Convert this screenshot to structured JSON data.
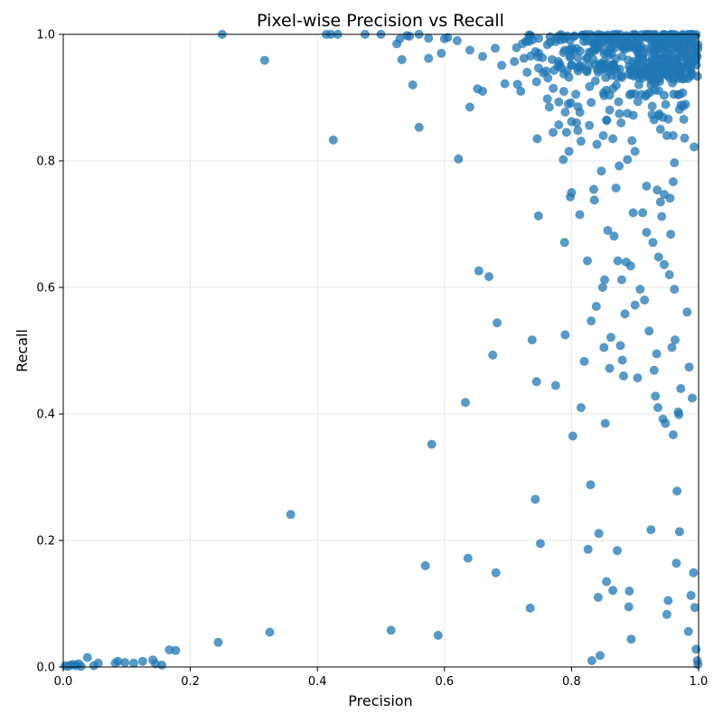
{
  "chart_data": {
    "type": "scatter",
    "title": "Pixel-wise Precision vs Recall",
    "xlabel": "Precision",
    "ylabel": "Recall",
    "xlim": [
      0,
      1
    ],
    "ylim": [
      0,
      1
    ],
    "xticks": [
      "0.0",
      "0.2",
      "0.4",
      "0.6",
      "0.8",
      "1.0"
    ],
    "yticks": [
      "0.0",
      "0.2",
      "0.4",
      "0.6",
      "0.8",
      "1.0"
    ],
    "grid": true,
    "marker_color": "#1f77b4",
    "marker_alpha": 0.75,
    "series": [
      {
        "points": [
          [
            0.003,
            0.002
          ],
          [
            0.008,
            0.001
          ],
          [
            0.012,
            0.003
          ],
          [
            0.016,
            0.004
          ],
          [
            0.02,
            0.002
          ],
          [
            0.024,
            0.005
          ],
          [
            0.028,
            0.001
          ],
          [
            0.038,
            0.015
          ],
          [
            0.048,
            0.002
          ],
          [
            0.055,
            0.006
          ],
          [
            0.082,
            0.006
          ],
          [
            0.086,
            0.009
          ],
          [
            0.097,
            0.007
          ],
          [
            0.111,
            0.006
          ],
          [
            0.125,
            0.009
          ],
          [
            0.141,
            0.011
          ],
          [
            0.145,
            0.005
          ],
          [
            0.155,
            0.003
          ],
          [
            0.167,
            0.027
          ],
          [
            0.177,
            0.026
          ],
          [
            0.244,
            0.039
          ],
          [
            0.25,
            1.0
          ],
          [
            0.325,
            0.055
          ],
          [
            0.317,
            0.959
          ],
          [
            0.358,
            0.241
          ],
          [
            0.414,
            1.0
          ],
          [
            0.421,
            1.0
          ],
          [
            0.425,
            0.833
          ],
          [
            0.432,
            1.0
          ],
          [
            0.475,
            1.0
          ],
          [
            0.5,
            1.0
          ],
          [
            0.516,
            0.058
          ],
          [
            0.525,
            0.985
          ],
          [
            0.533,
            0.96
          ],
          [
            0.541,
            0.998
          ],
          [
            0.55,
            0.92
          ],
          [
            0.56,
            0.853
          ],
          [
            0.57,
            0.16
          ],
          [
            0.575,
            0.962
          ],
          [
            0.58,
            0.352
          ],
          [
            0.59,
            0.05
          ],
          [
            0.595,
            0.97
          ],
          [
            0.605,
            0.995
          ],
          [
            0.622,
            0.803
          ],
          [
            0.633,
            0.418
          ],
          [
            0.637,
            0.172
          ],
          [
            0.64,
            0.885
          ],
          [
            0.652,
            0.914
          ],
          [
            0.654,
            0.626
          ],
          [
            0.66,
            0.91
          ],
          [
            0.67,
            0.617
          ],
          [
            0.676,
            0.493
          ],
          [
            0.681,
            0.149
          ],
          [
            0.683,
            0.544
          ],
          [
            0.69,
            0.951
          ],
          [
            0.695,
            0.922
          ],
          [
            0.715,
            0.921
          ],
          [
            0.72,
            0.91
          ],
          [
            0.735,
            0.093
          ],
          [
            0.738,
            0.517
          ],
          [
            0.743,
            0.265
          ],
          [
            0.745,
            0.451
          ],
          [
            0.746,
            0.835
          ],
          [
            0.748,
            0.713
          ],
          [
            0.751,
            0.195
          ],
          [
            0.762,
            0.898
          ],
          [
            0.765,
            0.885
          ],
          [
            0.771,
            0.845
          ],
          [
            0.775,
            0.445
          ],
          [
            0.78,
            0.857
          ],
          [
            0.787,
            0.802
          ],
          [
            0.789,
            0.671
          ],
          [
            0.79,
            0.525
          ],
          [
            0.792,
            0.845
          ],
          [
            0.796,
            0.815
          ],
          [
            0.798,
            0.743
          ],
          [
            0.8,
            0.75
          ],
          [
            0.802,
            0.365
          ],
          [
            0.808,
            0.86
          ],
          [
            0.813,
            0.715
          ],
          [
            0.815,
            0.41
          ],
          [
            0.82,
            0.483
          ],
          [
            0.825,
            0.642
          ],
          [
            0.826,
            0.186
          ],
          [
            0.83,
            0.288
          ],
          [
            0.831,
            0.547
          ],
          [
            0.832,
            0.01
          ],
          [
            0.835,
            0.755
          ],
          [
            0.836,
            0.738
          ],
          [
            0.839,
            0.57
          ],
          [
            0.842,
            0.11
          ],
          [
            0.843,
            0.211
          ],
          [
            0.845,
            0.018
          ],
          [
            0.847,
            0.784
          ],
          [
            0.849,
            0.6
          ],
          [
            0.851,
            0.505
          ],
          [
            0.852,
            0.612
          ],
          [
            0.853,
            0.385
          ],
          [
            0.855,
            0.135
          ],
          [
            0.857,
            0.69
          ],
          [
            0.86,
            0.472
          ],
          [
            0.862,
            0.521
          ],
          [
            0.865,
            0.121
          ],
          [
            0.867,
            0.681
          ],
          [
            0.87,
            0.757
          ],
          [
            0.872,
            0.184
          ],
          [
            0.873,
            0.642
          ],
          [
            0.875,
            0.792
          ],
          [
            0.877,
            0.508
          ],
          [
            0.879,
            0.612
          ],
          [
            0.88,
            0.485
          ],
          [
            0.882,
            0.46
          ],
          [
            0.884,
            0.558
          ],
          [
            0.886,
            0.64
          ],
          [
            0.888,
            0.802
          ],
          [
            0.89,
            0.095
          ],
          [
            0.891,
            0.12
          ],
          [
            0.893,
            0.634
          ],
          [
            0.894,
            0.044
          ],
          [
            0.897,
            0.718
          ],
          [
            0.9,
            0.572
          ],
          [
            0.904,
            0.457
          ],
          [
            0.908,
            0.597
          ],
          [
            0.912,
            0.718
          ],
          [
            0.915,
            0.58
          ],
          [
            0.918,
            0.687
          ],
          [
            0.922,
            0.531
          ],
          [
            0.925,
            0.217
          ],
          [
            0.928,
            0.671
          ],
          [
            0.93,
            0.469
          ],
          [
            0.932,
            0.428
          ],
          [
            0.934,
            0.495
          ],
          [
            0.936,
            0.41
          ],
          [
            0.937,
            0.648
          ],
          [
            0.94,
            0.735
          ],
          [
            0.942,
            0.712
          ],
          [
            0.944,
            0.392
          ],
          [
            0.946,
            0.636
          ],
          [
            0.948,
            0.385
          ],
          [
            0.95,
            0.083
          ],
          [
            0.952,
            0.105
          ],
          [
            0.954,
            0.62
          ],
          [
            0.956,
            0.684
          ],
          [
            0.958,
            0.505
          ],
          [
            0.96,
            0.367
          ],
          [
            0.962,
            0.597
          ],
          [
            0.963,
            0.517
          ],
          [
            0.965,
            0.164
          ],
          [
            0.966,
            0.278
          ],
          [
            0.968,
            0.403
          ],
          [
            0.969,
            0.399
          ],
          [
            0.97,
            0.214
          ],
          [
            0.972,
            0.44
          ],
          [
            0.978,
            0.836
          ],
          [
            0.982,
            0.561
          ],
          [
            0.984,
            0.056
          ],
          [
            0.985,
            0.474
          ],
          [
            0.988,
            0.113
          ],
          [
            0.99,
            0.425
          ],
          [
            0.992,
            0.149
          ],
          [
            0.993,
            0.822
          ],
          [
            0.994,
            0.094
          ],
          [
            0.996,
            0.028
          ],
          [
            0.998,
            0.01
          ],
          [
            0.999,
            0.004
          ],
          [
            0.962,
            0.797
          ],
          [
            0.96,
            0.767
          ],
          [
            0.955,
            0.741
          ],
          [
            0.946,
            0.747
          ],
          [
            0.935,
            0.754
          ],
          [
            0.918,
            0.76
          ],
          [
            0.9,
            0.815
          ],
          [
            0.895,
            0.832
          ],
          [
            0.888,
            0.875
          ],
          [
            0.878,
            0.86
          ],
          [
            0.865,
            0.835
          ],
          [
            0.85,
            0.84
          ],
          [
            0.84,
            0.826
          ],
          [
            0.828,
            0.856
          ],
          [
            0.815,
            0.831
          ],
          [
            0.81,
            0.848
          ],
          [
            0.8,
            0.862
          ],
          [
            0.79,
            0.877
          ],
          [
            0.78,
            0.893
          ],
          [
            0.76,
            0.942
          ],
          [
            0.745,
            0.925
          ],
          [
            0.73,
            0.94
          ],
          [
            0.725,
            0.962
          ],
          [
            0.71,
            0.957
          ],
          [
            0.68,
            0.978
          ],
          [
            0.66,
            0.965
          ],
          [
            0.64,
            0.975
          ],
          [
            0.62,
            0.99
          ],
          [
            0.6,
            0.993
          ],
          [
            0.575,
            0.994
          ],
          [
            0.56,
            1.0
          ],
          [
            0.545,
            0.997
          ],
          [
            0.53,
            0.993
          ],
          [
            0.91,
            0.905
          ],
          [
            0.925,
            0.92
          ],
          [
            0.93,
            0.865
          ],
          [
            0.94,
            0.85
          ],
          [
            0.95,
            0.84
          ],
          [
            0.96,
            0.84
          ],
          [
            0.97,
            0.905
          ],
          [
            0.975,
            0.935
          ],
          [
            0.98,
            0.97
          ],
          [
            0.985,
            0.992
          ],
          [
            0.99,
            1.0
          ],
          [
            0.955,
            0.955
          ]
        ]
      }
    ],
    "clusters": [
      {
        "x_range": [
          0.7,
          1.0
        ],
        "y_range": [
          0.93,
          1.0
        ],
        "count": 400
      },
      {
        "x_range": [
          0.75,
          0.98
        ],
        "y_range": [
          0.86,
          0.95
        ],
        "count": 90
      }
    ]
  }
}
